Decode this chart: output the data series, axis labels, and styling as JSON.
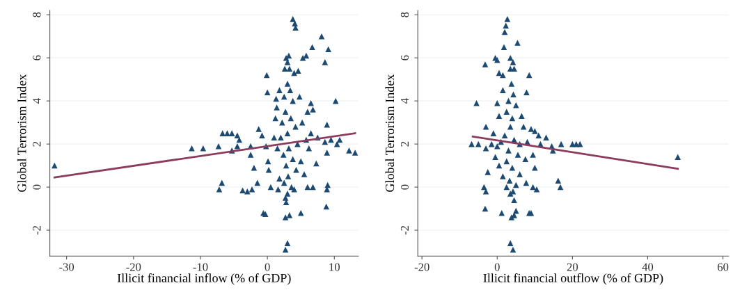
{
  "chart_data": [
    {
      "type": "scatter",
      "xlabel": "Illicit financial inflow (% of GDP)",
      "ylabel": "Global Terrorism Index",
      "xlim": [
        -32.5,
        13.6
      ],
      "ylim": [
        -3.2,
        8.2
      ],
      "xticks": [
        -30,
        -20,
        -10,
        0,
        10
      ],
      "yticks": [
        -2,
        0,
        2,
        4,
        6,
        8
      ],
      "grid": "y",
      "marker": "triangle",
      "series": [
        {
          "color": "#1d4a72",
          "x": [
            -31.8,
            -11.3,
            -9.6,
            -7.3,
            -6.7,
            -6.0,
            -5.3,
            -4.5,
            -4.2,
            -4.5,
            -5.3,
            -7.2,
            -6.8,
            -3.7,
            -3.0,
            -2.3,
            -1.5,
            -2.0,
            -2.5,
            -2.5,
            -1.3,
            -0.8,
            -0.1,
            0.0,
            -0.6,
            -0.3,
            -0.2,
            0.1,
            0.2,
            0.5,
            1.2,
            1.4,
            1.3,
            1.8,
            2.8,
            3.0,
            3.2,
            2.6,
            3.3,
            4.0,
            4.6,
            5.3,
            5.8,
            3.8,
            4.1,
            4.2,
            6.7,
            8.1,
            8.6,
            9.1,
            10.2,
            3.0,
            2.7,
            2.8,
            2.7,
            3.3,
            5.0,
            8.8,
            9.0,
            8.9,
            8.9,
            8.9,
            7.3,
            6.0,
            6.5,
            6.8,
            6.5,
            7.5,
            8.6,
            9.5,
            10.4,
            10.8,
            12.2,
            13.1,
            6.0,
            6.8,
            3.0,
            3.4,
            2.5,
            3.8,
            2.7,
            3.5,
            2.2,
            4.2,
            3.0,
            2.0,
            4.5,
            3.2,
            2.4,
            3.8,
            2.8,
            4.3,
            3.1,
            2.5,
            3.6,
            3.0,
            4.0,
            2.7,
            5.0,
            5.5,
            1.5,
            1.0,
            5.8,
            6.2,
            4.8,
            5.2,
            1.8,
            1.6
          ],
          "values": [
            1.0,
            1.8,
            1.8,
            1.9,
            2.5,
            2.5,
            2.5,
            2.4,
            2.2,
            1.9,
            1.7,
            -0.1,
            0.2,
            -0.15,
            -0.2,
            -0.1,
            0.2,
            0.9,
            1.5,
            1.9,
            2.7,
            2.4,
            5.2,
            4.4,
            -1.2,
            -1.25,
            1.9,
            1.2,
            0.8,
            0.0,
            3.2,
            3.7,
            4.1,
            4.5,
            6.0,
            5.8,
            6.1,
            5.5,
            5.5,
            5.3,
            5.4,
            6.0,
            6.1,
            7.8,
            7.6,
            7.4,
            6.5,
            7.0,
            5.8,
            6.4,
            4.0,
            -2.6,
            -2.9,
            -0.7,
            -1.4,
            -1.3,
            -1.2,
            -0.9,
            0.1,
            -0.1,
            1.6,
            2.9,
            1.1,
            3.5,
            3.9,
            3.6,
            2.5,
            2.3,
            2.1,
            2.2,
            2.0,
            2.2,
            1.7,
            1.6,
            0.0,
            0.0,
            4.8,
            4.5,
            4.2,
            4.0,
            3.5,
            3.2,
            3.0,
            2.8,
            2.5,
            2.3,
            2.0,
            1.8,
            1.5,
            1.3,
            1.0,
            0.8,
            0.5,
            0.2,
            0.0,
            -0.3,
            -0.1,
            -0.5,
            1.2,
            0.6,
            1.8,
            2.3,
            2.2,
            1.8,
            4.2,
            3.0,
            0.4,
            -0.1
          ]
        },
        {
          "type": "line",
          "color": "#8c3b5c",
          "marker": "none",
          "x": [
            -31.8,
            13.1
          ],
          "values": [
            0.45,
            2.5
          ]
        }
      ]
    },
    {
      "type": "scatter",
      "xlabel": "Illicit financial outflow (% of GDP)",
      "ylabel": "Global Terrorism Index",
      "xlim": [
        -21.1,
        61.5
      ],
      "ylim": [
        -3.2,
        8.2
      ],
      "xticks": [
        -20,
        0,
        20,
        40,
        60
      ],
      "yticks": [
        -2,
        0,
        2,
        4,
        6,
        8
      ],
      "grid": "y",
      "marker": "triangle",
      "series": [
        {
          "color": "#1d4a72",
          "x": [
            -5.5,
            -3.0,
            -3.2,
            -1.0,
            -6.8,
            -5.0,
            -3.0,
            -1.5,
            -2.5,
            -3.5,
            -3.0,
            -3.2,
            -0.5,
            0.0,
            0.5,
            1.5,
            1.8,
            5.4,
            2.0,
            2.3,
            2.7,
            3.5,
            4.2,
            3.5,
            4.5,
            8.5,
            7.8,
            1.5,
            0.0,
            0.5,
            13.0,
            14.5,
            14.8,
            17.0,
            20.0,
            21.0,
            22.0,
            48.0,
            16.2,
            16.8,
            10.0,
            10.5,
            9.5,
            7.7,
            8.5,
            9.0,
            1.2,
            3.5,
            4.2,
            3.8,
            4.5,
            5.0,
            4.5,
            3.5,
            3.8,
            4.3,
            3.0,
            5.0,
            2.5,
            4.0,
            6.5,
            7.0,
            9.0,
            10.0,
            11.0,
            3.5,
            2.0,
            4.5,
            6.0,
            8.0,
            11.5,
            1.0,
            0.0,
            3.0,
            5.5,
            7.5,
            9.5,
            2.5,
            4.0,
            6.0,
            1.5,
            3.3,
            5.0,
            2.5,
            4.2,
            0.5,
            -0.5
          ],
          "values": [
            3.9,
            2.8,
            5.7,
            2.5,
            2.0,
            2.0,
            1.8,
            2.0,
            0.7,
            0.0,
            -0.2,
            -1.0,
            6.0,
            5.9,
            5.3,
            5.2,
            6.5,
            6.7,
            7.2,
            7.5,
            7.8,
            6.0,
            5.8,
            5.5,
            5.5,
            5.2,
            4.4,
            4.5,
            3.9,
            3.3,
            2.3,
            1.9,
            1.7,
            2.0,
            2.0,
            2.0,
            2.0,
            1.4,
            0.3,
            0.0,
            0.9,
            -0.1,
            0.0,
            0.2,
            -1.2,
            -1.2,
            -1.2,
            -2.6,
            -2.9,
            -1.4,
            -1.3,
            -1.1,
            -0.6,
            -0.3,
            4.8,
            4.3,
            4.0,
            3.8,
            3.5,
            3.2,
            3.3,
            2.8,
            2.7,
            2.6,
            2.4,
            2.8,
            2.4,
            2.2,
            2.0,
            2.1,
            2.0,
            2.1,
            1.9,
            1.7,
            1.5,
            1.3,
            1.5,
            1.2,
            0.9,
            0.6,
            0.5,
            0.3,
            0.1,
            0.0,
            -0.2,
            1.0,
            1.4
          ]
        },
        {
          "type": "line",
          "color": "#8c3b5c",
          "marker": "none",
          "x": [
            -6.5,
            48.0
          ],
          "values": [
            2.35,
            0.85
          ]
        }
      ]
    }
  ]
}
